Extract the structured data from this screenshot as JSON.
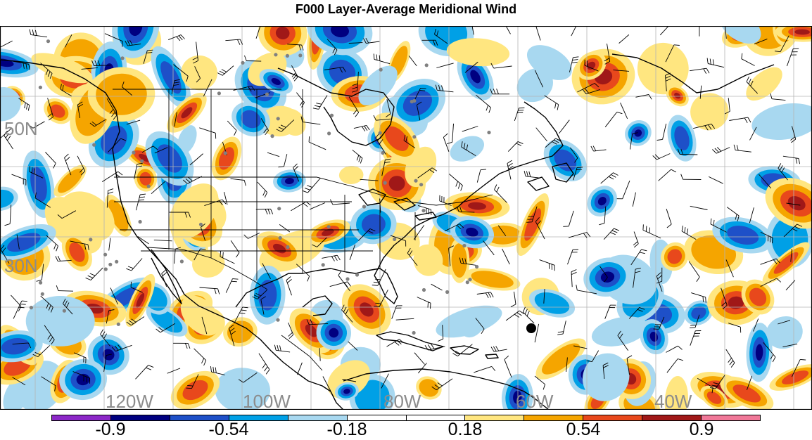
{
  "title": "F000 Layer-Average Meridional Wind",
  "map": {
    "lat_labels": [
      "50N",
      "30N"
    ],
    "lon_labels": [
      "120W",
      "100W",
      "80W",
      "60W",
      "40W"
    ],
    "fill_colors": {
      "strong_negative": "#000080",
      "negative": "#1e50c8",
      "moderate_negative": "#00a0e6",
      "weak_negative": "#a8d8f0",
      "weak_positive": "#ffe680",
      "moderate_positive": "#f5a500",
      "positive": "#e8481c",
      "strong_positive": "#a01818"
    }
  },
  "colorbar": {
    "colors": [
      "#8c28c8",
      "#000080",
      "#1e50c8",
      "#00a0e6",
      "#a8d8f0",
      "#ffffff",
      "#ffffff",
      "#ffe680",
      "#f5a500",
      "#e8481c",
      "#a01818",
      "#f07898"
    ],
    "labels": [
      "-0.9",
      "-0.54",
      "-0.18",
      "0.18",
      "0.54",
      "0.9"
    ]
  }
}
